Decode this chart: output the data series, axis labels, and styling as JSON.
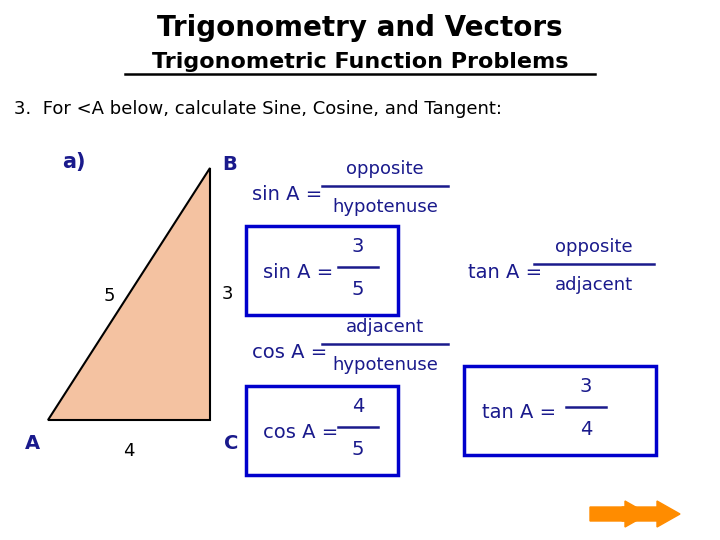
{
  "title": "Trigonometry and Vectors",
  "subtitle": "Trigonometric Function Problems",
  "problem_text": "3.  For <A below, calculate Sine, Cosine, and Tangent:",
  "dark_blue": "#1a1a8c",
  "box_color": "#0000cc",
  "arrow_color": "#FF8C00",
  "triangle_fill": "#F4C2A1",
  "triangle_edge": "#000000"
}
